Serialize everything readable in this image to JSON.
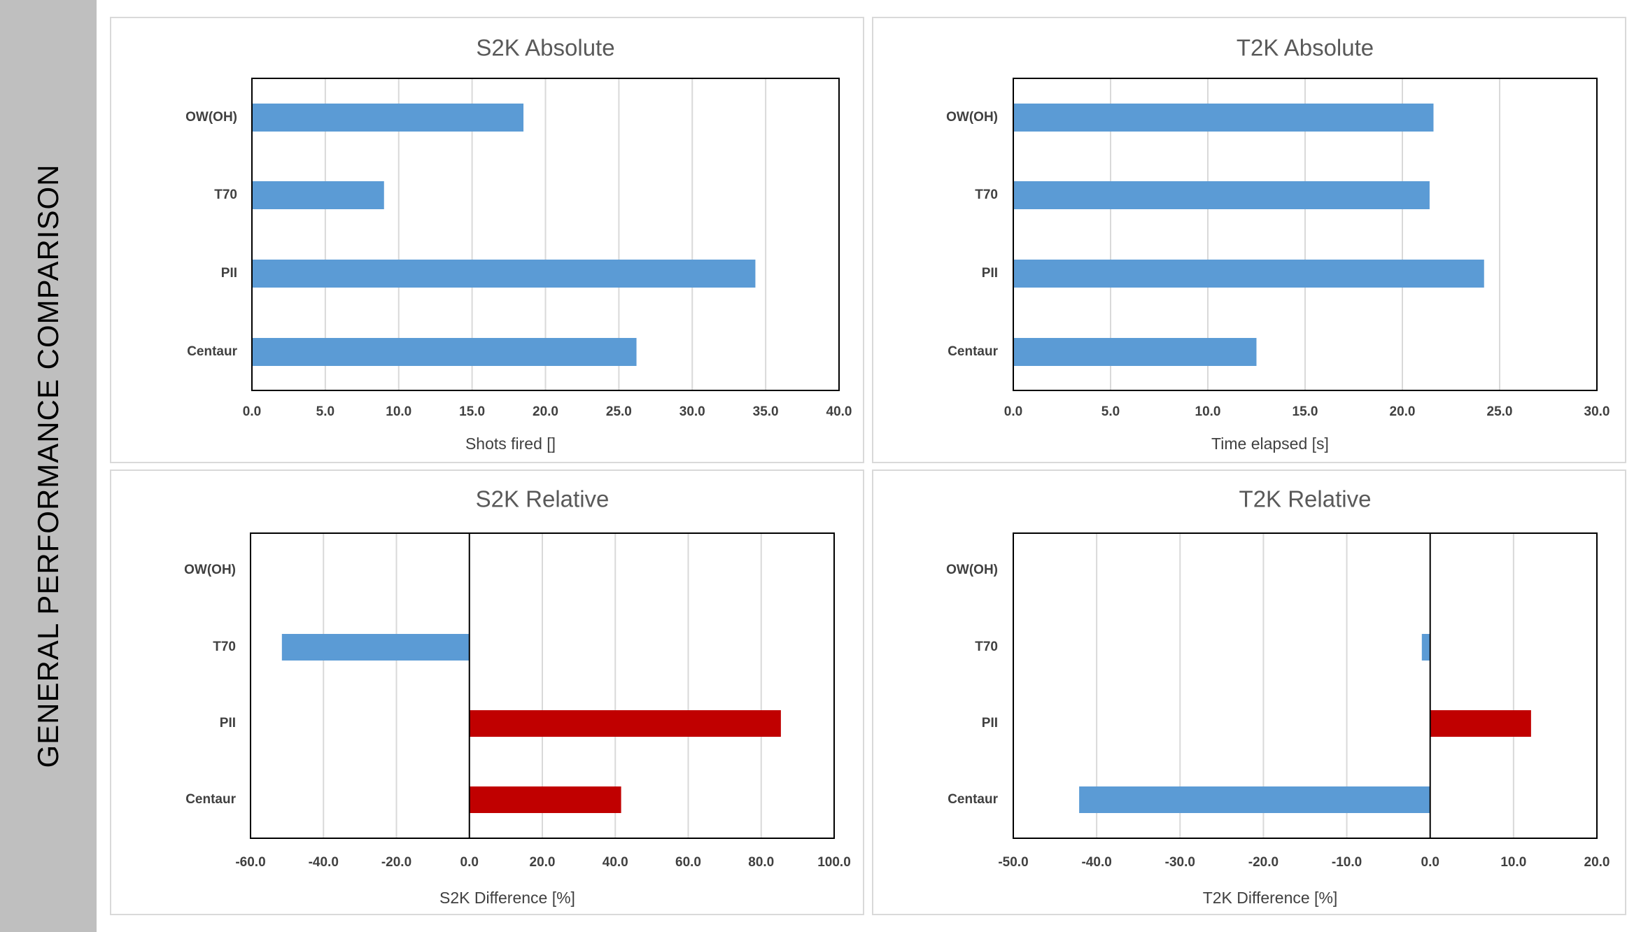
{
  "sidebar": {
    "title": "GENERAL PERFORMANCE COMPARISON"
  },
  "chart_data": [
    {
      "type": "bar",
      "orientation": "horizontal",
      "title": "S2K Absolute",
      "xlabel": "Shots fired []",
      "ylabel": "",
      "categories": [
        "OW(OH)",
        "T70",
        "PII",
        "Centaur"
      ],
      "values": [
        18.5,
        9.0,
        34.3,
        26.2
      ],
      "xlim": [
        0,
        40
      ],
      "xticks": [
        "0.0",
        "5.0",
        "10.0",
        "15.0",
        "20.0",
        "25.0",
        "30.0",
        "35.0",
        "40.0"
      ],
      "grid": true,
      "colors": {
        "bar": "#5b9bd5"
      }
    },
    {
      "type": "bar",
      "orientation": "horizontal",
      "title": "T2K Absolute",
      "xlabel": "Time elapsed [s]",
      "ylabel": "",
      "categories": [
        "OW(OH)",
        "T70",
        "PII",
        "Centaur"
      ],
      "values": [
        21.6,
        21.4,
        24.2,
        12.5
      ],
      "xlim": [
        0,
        30
      ],
      "xticks": [
        "0.0",
        "5.0",
        "10.0",
        "15.0",
        "20.0",
        "25.0",
        "30.0"
      ],
      "grid": true,
      "colors": {
        "bar": "#5b9bd5"
      }
    },
    {
      "type": "bar",
      "orientation": "horizontal",
      "title": "S2K Relative",
      "xlabel": "S2K Difference [%]",
      "ylabel": "",
      "categories": [
        "OW(OH)",
        "T70",
        "PII",
        "Centaur"
      ],
      "values": [
        0,
        -51.4,
        85.4,
        41.6
      ],
      "xlim": [
        -60,
        100
      ],
      "xticks": [
        "-60.0",
        "-40.0",
        "-20.0",
        "0.0",
        "20.0",
        "40.0",
        "60.0",
        "80.0",
        "100.0"
      ],
      "grid": true,
      "colors": {
        "negative": "#5b9bd5",
        "positive": "#c00000"
      }
    },
    {
      "type": "bar",
      "orientation": "horizontal",
      "title": "T2K Relative",
      "xlabel": "T2K Difference [%]",
      "ylabel": "",
      "categories": [
        "OW(OH)",
        "T70",
        "PII",
        "Centaur"
      ],
      "values": [
        0,
        -1.0,
        12.1,
        -42.1
      ],
      "xlim": [
        -50,
        20
      ],
      "xticks": [
        "-50.0",
        "-40.0",
        "-30.0",
        "-20.0",
        "-10.0",
        "0.0",
        "10.0",
        "20.0"
      ],
      "grid": true,
      "colors": {
        "negative": "#5b9bd5",
        "positive": "#c00000"
      }
    }
  ]
}
